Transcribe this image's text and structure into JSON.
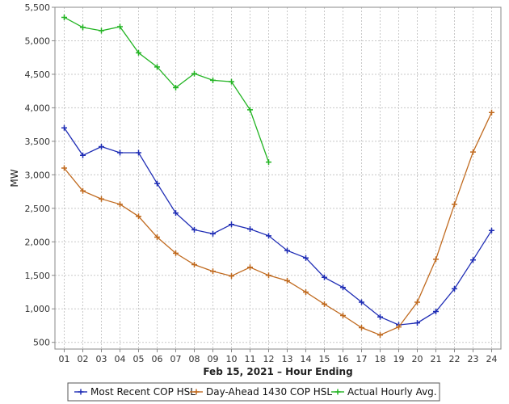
{
  "chart_data": {
    "type": "line",
    "title": "",
    "xlabel": "Feb 15, 2021 – Hour Ending",
    "ylabel": "MW",
    "ylim": [
      400,
      5500
    ],
    "yticks": [
      500,
      1000,
      1500,
      2000,
      2500,
      3000,
      3500,
      4000,
      4500,
      5000,
      5500
    ],
    "ytick_labels": [
      "500",
      "1,000",
      "1,500",
      "2,000",
      "2,500",
      "3,000",
      "3,500",
      "4,000",
      "4,500",
      "5,000",
      "5,500"
    ],
    "grid": true,
    "legend_position": "bottom",
    "categories": [
      "01",
      "02",
      "03",
      "04",
      "05",
      "06",
      "07",
      "08",
      "09",
      "10",
      "11",
      "12",
      "13",
      "14",
      "15",
      "16",
      "17",
      "18",
      "19",
      "20",
      "21",
      "22",
      "23",
      "24"
    ],
    "series": [
      {
        "name": "Most Recent COP HSL",
        "color": "#1f2db5",
        "values": [
          3700,
          3290,
          3420,
          3330,
          3330,
          2870,
          2430,
          2180,
          2120,
          2260,
          2190,
          2090,
          1870,
          1760,
          1470,
          1320,
          1100,
          880,
          760,
          790,
          960,
          1300,
          1730,
          2170
        ]
      },
      {
        "name": "Day-Ahead 1430 COP HSL",
        "color": "#c06a1f",
        "values": [
          3100,
          2760,
          2640,
          2560,
          2380,
          2070,
          1830,
          1660,
          1560,
          1490,
          1620,
          1500,
          1420,
          1250,
          1070,
          900,
          720,
          610,
          730,
          1100,
          1740,
          2560,
          3340,
          3930
        ]
      },
      {
        "name": "Actual Hourly Avg.",
        "color": "#22b422",
        "values": [
          5350,
          5200,
          5150,
          5210,
          4820,
          4610,
          4300,
          4510,
          4410,
          4390,
          3970,
          3190,
          null,
          null,
          null,
          null,
          null,
          null,
          null,
          null,
          null,
          null,
          null,
          null
        ]
      }
    ]
  }
}
